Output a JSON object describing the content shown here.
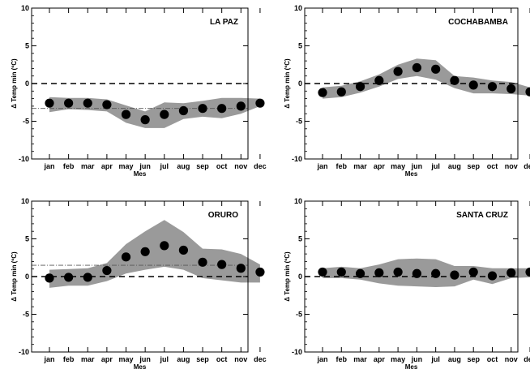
{
  "chart_data": [
    {
      "type": "scatter",
      "title": "LA PAZ",
      "xlabel": "Mes",
      "ylabel": "Δ Temp min (ºC)",
      "categories": [
        "jan",
        "feb",
        "mar",
        "apr",
        "may",
        "jun",
        "jul",
        "aug",
        "sep",
        "oct",
        "nov",
        "dec"
      ],
      "values": [
        -2.6,
        -2.6,
        -2.6,
        -2.8,
        -4.1,
        -4.8,
        -4.1,
        -3.6,
        -3.3,
        -3.3,
        -3.0,
        -2.6
      ],
      "band_low": [
        -3.8,
        -3.4,
        -3.5,
        -3.7,
        -5.2,
        -5.9,
        -5.9,
        -4.7,
        -4.4,
        -4.6,
        -4.0,
        -3.0
      ],
      "band_high": [
        -1.8,
        -1.9,
        -1.9,
        -2.1,
        -2.9,
        -3.7,
        -2.5,
        -2.6,
        -2.3,
        -1.9,
        -1.9,
        -2.0
      ],
      "ref_line": -3.3,
      "ylim": [
        -10,
        10
      ],
      "yticks": [
        -10,
        -5,
        0,
        5,
        10
      ],
      "grid": false
    },
    {
      "type": "scatter",
      "title": "COCHABAMBA",
      "xlabel": "Mes",
      "ylabel": "Δ Temp min (ºC)",
      "categories": [
        "jan",
        "feb",
        "mar",
        "apr",
        "may",
        "jun",
        "jul",
        "aug",
        "sep",
        "oct",
        "nov",
        "dec"
      ],
      "values": [
        -1.2,
        -1.1,
        -0.4,
        0.4,
        1.6,
        2.1,
        1.9,
        0.4,
        -0.2,
        -0.4,
        -0.7,
        -1.1
      ],
      "band_low": [
        -2.0,
        -1.8,
        -1.2,
        -0.4,
        0.6,
        1.0,
        0.5,
        -0.6,
        -1.3,
        -1.3,
        -1.4,
        -1.6
      ],
      "band_high": [
        -0.5,
        -0.3,
        0.3,
        1.2,
        2.5,
        3.3,
        3.1,
        1.0,
        0.8,
        0.4,
        0.2,
        -0.5
      ],
      "ylim": [
        -10,
        10
      ],
      "yticks": [
        -10,
        -5,
        0,
        5,
        10
      ],
      "grid": false
    },
    {
      "type": "scatter",
      "title": "ORURO",
      "xlabel": "Mes",
      "ylabel": "Δ Temp min (ºC)",
      "categories": [
        "jan",
        "feb",
        "mar",
        "apr",
        "may",
        "jun",
        "jul",
        "aug",
        "sep",
        "oct",
        "nov",
        "dec"
      ],
      "values": [
        -0.2,
        -0.1,
        -0.1,
        0.8,
        2.6,
        3.3,
        4.1,
        3.5,
        1.9,
        1.6,
        1.1,
        0.6
      ],
      "band_low": [
        -1.5,
        -1.2,
        -1.2,
        -0.6,
        0.4,
        0.9,
        1.3,
        0.9,
        -0.2,
        -0.5,
        -0.8,
        -0.8
      ],
      "band_high": [
        0.9,
        1.0,
        1.1,
        1.8,
        4.3,
        6.0,
        7.5,
        5.9,
        3.7,
        3.6,
        3.0,
        1.6
      ],
      "ref_line": 1.5,
      "ylim": [
        -10,
        10
      ],
      "yticks": [
        -10,
        -5,
        0,
        5,
        10
      ],
      "grid": false
    },
    {
      "type": "scatter",
      "title": "SANTA CRUZ",
      "xlabel": "Mes",
      "ylabel": "Δ Temp min (ºC)",
      "categories": [
        "jan",
        "feb",
        "mar",
        "apr",
        "may",
        "jun",
        "jul",
        "aug",
        "sep",
        "oct",
        "nov",
        "dec"
      ],
      "values": [
        0.6,
        0.6,
        0.4,
        0.5,
        0.6,
        0.4,
        0.4,
        0.2,
        0.6,
        0.1,
        0.5,
        0.6
      ],
      "band_low": [
        -0.2,
        -0.2,
        -0.4,
        -0.9,
        -1.2,
        -1.3,
        -1.4,
        -1.3,
        -0.4,
        -1.0,
        -0.2,
        -0.1
      ],
      "band_high": [
        1.1,
        1.3,
        1.1,
        1.6,
        2.3,
        2.4,
        2.3,
        1.4,
        1.4,
        1.1,
        1.1,
        1.1
      ],
      "ylim": [
        -10,
        10
      ],
      "yticks": [
        -10,
        -5,
        0,
        5,
        10
      ],
      "grid": false
    }
  ],
  "colors": {
    "band": "#9a9a9a",
    "marker": "#000000",
    "zero_line": "#000000",
    "ref_line": "#555555"
  },
  "month_tick_labels": [
    "jan",
    "feb",
    "mar",
    "apr",
    "may",
    "jun",
    "jul",
    "aug",
    "sep",
    "oct",
    "nov",
    "dec"
  ]
}
